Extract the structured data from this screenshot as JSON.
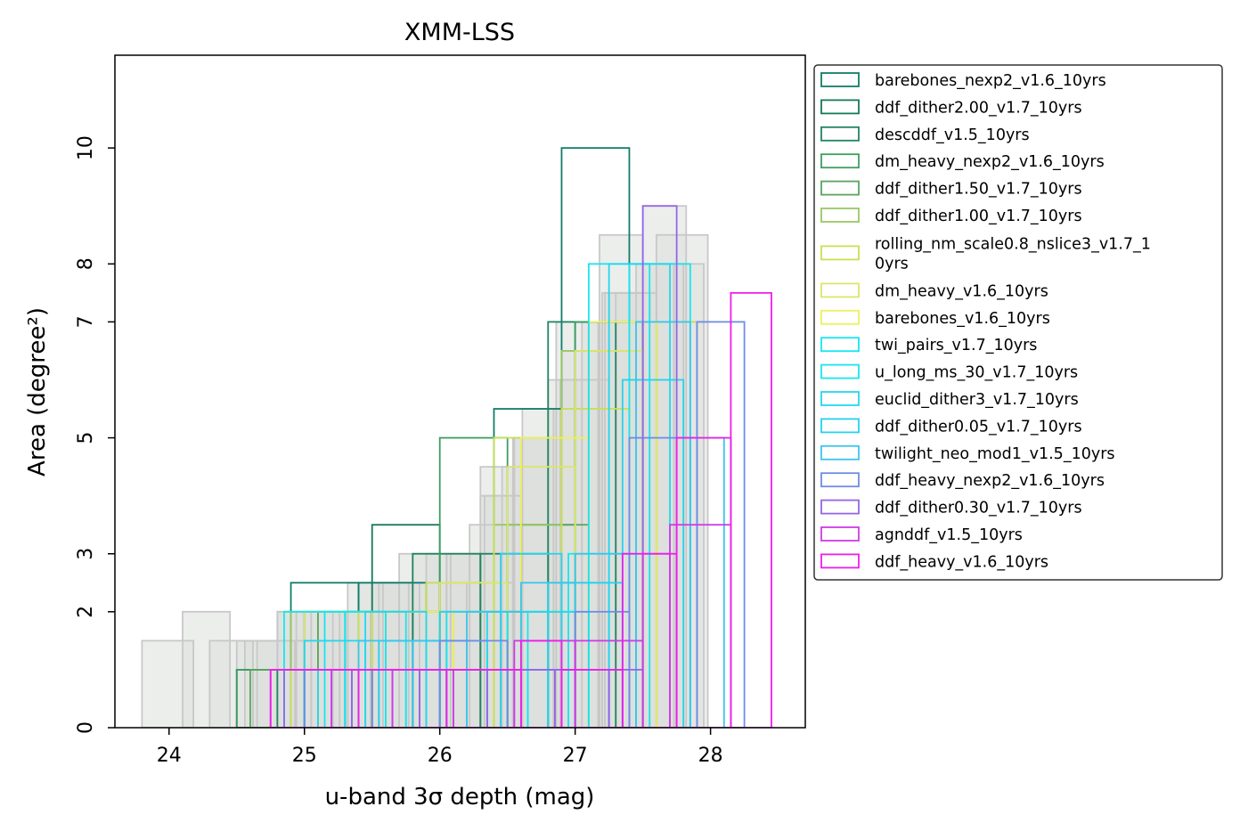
{
  "chart_data": {
    "type": "histogram",
    "title": "XMM-LSS",
    "xlabel": "u-band 3σ depth (mag)",
    "ylabel": "Area (degree²)",
    "xlim": [
      23.6,
      28.7
    ],
    "ylim": [
      0,
      11.6
    ],
    "x_ticks": [
      24,
      25,
      26,
      27,
      28
    ],
    "y_ticks": [
      0,
      2,
      3,
      5,
      7,
      8,
      10
    ],
    "y_tick_labels": [
      "0",
      "2",
      "3",
      "5",
      "7",
      "8",
      "10"
    ],
    "grid": false,
    "legend_position": "outside-right",
    "background_series_color": "#c8c8c8",
    "background_fill_color": "#dde0dc",
    "background_series": [
      {
        "x": [
          23.8,
          24.18,
          24.56,
          24.94,
          25.32,
          25.7,
          26.08,
          26.46,
          26.84,
          27.22,
          27.6,
          27.98
        ],
        "counts": [
          1.5,
          0,
          1.5,
          2,
          2.5,
          2,
          3,
          4.5,
          5.5,
          7.5,
          8.5,
          0
        ]
      },
      {
        "x": [
          24.1,
          24.45,
          24.8,
          25.15,
          25.5,
          25.85,
          26.2,
          26.55,
          26.9,
          27.25,
          27.6,
          27.95
        ],
        "counts": [
          2,
          0,
          2,
          2,
          2.5,
          2,
          2.5,
          5,
          6,
          7.5,
          8,
          0
        ]
      },
      {
        "x": [
          24.3,
          24.62,
          24.94,
          25.26,
          25.58,
          25.9,
          26.22,
          26.54,
          26.86,
          27.18,
          27.5,
          27.82
        ],
        "counts": [
          1.5,
          1,
          1.5,
          2,
          2.5,
          3,
          3.5,
          5,
          7,
          8.5,
          9,
          0
        ]
      },
      {
        "x": [
          24.5,
          24.8,
          25.1,
          25.4,
          25.7,
          26.0,
          26.3,
          26.6,
          26.9,
          27.2,
          27.5,
          27.8
        ],
        "counts": [
          1.5,
          2,
          2,
          2.5,
          3,
          2.5,
          4,
          5,
          6.5,
          7.5,
          8,
          0
        ]
      },
      {
        "x": [
          24.65,
          24.93,
          25.21,
          25.49,
          25.77,
          26.05,
          26.33,
          26.61,
          26.89,
          27.17,
          27.45,
          27.73
        ],
        "counts": [
          1.5,
          1.5,
          2,
          2,
          2.5,
          3,
          4,
          5.5,
          6,
          7,
          8,
          0
        ]
      },
      {
        "x": [
          24.8,
          25.05,
          25.3,
          25.55,
          25.8,
          26.05,
          26.3,
          26.55,
          26.8,
          27.05,
          27.3,
          27.55
        ],
        "counts": [
          2,
          1.5,
          2,
          2.5,
          3,
          3,
          4.5,
          5,
          6,
          7,
          7.5,
          0
        ]
      }
    ],
    "series": [
      {
        "name": "barebones_nexp2_v1.6_10yrs",
        "color": "#117d6a",
        "x": [
          24.9,
          25.4,
          25.9,
          26.4,
          26.9,
          27.4
        ],
        "counts": [
          2.5,
          2.5,
          1,
          5.5,
          10,
          0
        ]
      },
      {
        "name": "ddf_dither2.00_v1.7_10yrs",
        "color": "#15795a",
        "x": [
          24.5,
          25.0,
          25.5,
          26.0,
          26.5,
          27.0,
          27.5
        ],
        "counts": [
          1,
          2,
          3.5,
          1,
          2,
          7,
          0
        ]
      },
      {
        "name": "descddf_v1.5_10yrs",
        "color": "#1f8560",
        "x": [
          24.8,
          25.3,
          25.8,
          26.3,
          26.8,
          27.3
        ],
        "counts": [
          1,
          2,
          3,
          3,
          7,
          0
        ]
      },
      {
        "name": "dm_heavy_nexp2_v1.6_10yrs",
        "color": "#3c9e62",
        "x": [
          24.5,
          25.0,
          25.5,
          26.0,
          26.5,
          27.0,
          27.5
        ],
        "counts": [
          1,
          1,
          2,
          5,
          3.5,
          7,
          0
        ]
      },
      {
        "name": "ddf_dither1.50_v1.7_10yrs",
        "color": "#5aa55c",
        "x": [
          24.6,
          25.1,
          25.6,
          26.1,
          26.6,
          27.1,
          27.6
        ],
        "counts": [
          1,
          2,
          2,
          2,
          3.5,
          7,
          0
        ]
      },
      {
        "name": "ddf_dither1.00_v1.7_10yrs",
        "color": "#98c860",
        "x": [
          24.9,
          25.4,
          25.9,
          26.4,
          26.9,
          27.4
        ],
        "counts": [
          2,
          2,
          1,
          3.5,
          6.5,
          0
        ]
      },
      {
        "name": "rolling_nm_scale0.8_nslice3_v1.7_10yrs",
        "color": "#c9df55",
        "x": [
          24.9,
          25.4,
          25.9,
          26.4,
          26.9,
          27.4,
          27.9
        ],
        "counts": [
          1,
          2,
          2.5,
          5,
          5.5,
          7,
          0
        ]
      },
      {
        "name": "dm_heavy_v1.6_10yrs",
        "color": "#dde66a",
        "x": [
          25.0,
          25.5,
          26.0,
          26.5,
          27.0,
          27.5
        ],
        "counts": [
          2,
          2,
          2.5,
          4.5,
          6.5,
          0
        ]
      },
      {
        "name": "barebones_v1.6_10yrs",
        "color": "#eef05a",
        "x": [
          25.1,
          25.6,
          26.1,
          26.6,
          27.1,
          27.6
        ],
        "counts": [
          1,
          2,
          2,
          5,
          7,
          0
        ]
      },
      {
        "name": "twi_pairs_v1.7_10yrs",
        "color": "#17e6ee",
        "x": [
          24.85,
          25.3,
          25.75,
          26.2,
          26.65,
          27.1,
          27.55
        ],
        "counts": [
          2,
          2,
          1,
          1,
          2,
          8,
          0
        ]
      },
      {
        "name": "u_long_ms_30_v1.7_10yrs",
        "color": "#19e6f0",
        "x": [
          25.15,
          25.6,
          26.05,
          26.5,
          26.95,
          27.4,
          27.85
        ],
        "counts": [
          2,
          1.5,
          2,
          1,
          3,
          8,
          0
        ]
      },
      {
        "name": "euclid_dither3_v1.7_10yrs",
        "color": "#22d8ee",
        "x": [
          25.0,
          25.45,
          25.9,
          26.35,
          26.8,
          27.25,
          27.7
        ],
        "counts": [
          1.5,
          2,
          1.5,
          2,
          2.5,
          8,
          0
        ]
      },
      {
        "name": "ddf_dither0.05_v1.7_10yrs",
        "color": "#26d2ec",
        "x": [
          25.1,
          25.55,
          26.0,
          26.45,
          26.9,
          27.35,
          27.8
        ],
        "counts": [
          1,
          1.5,
          2,
          3,
          2.5,
          6,
          0
        ]
      },
      {
        "name": "twilight_neo_mod1_v1.5_10yrs",
        "color": "#3ac6ee",
        "x": [
          25.0,
          25.4,
          25.8,
          26.2,
          26.6,
          27.0,
          27.45,
          27.85,
          28.1
        ],
        "counts": [
          1,
          1.5,
          1.5,
          2,
          2.5,
          3,
          7,
          5,
          0
        ]
      },
      {
        "name": "ddf_heavy_nexp2_v1.6_10yrs",
        "color": "#6f8ce6",
        "x": [
          25.0,
          25.5,
          26.0,
          26.5,
          27.0,
          27.4,
          27.9,
          28.25
        ],
        "counts": [
          1,
          1,
          1.5,
          1,
          2,
          5,
          7,
          0
        ]
      },
      {
        "name": "ddf_dither0.30_v1.7_10yrs",
        "color": "#9466e8",
        "x": [
          24.85,
          25.35,
          25.85,
          26.35,
          26.85,
          27.25,
          27.5,
          27.75
        ],
        "counts": [
          1,
          1,
          1,
          1,
          1,
          1,
          9,
          0
        ]
      },
      {
        "name": "agnddf_v1.5_10yrs",
        "color": "#cf3ae8",
        "x": [
          24.75,
          25.2,
          25.65,
          26.1,
          26.55,
          27.0,
          27.5,
          27.7,
          28.15
        ],
        "counts": [
          1,
          1,
          1,
          1,
          1.5,
          1.5,
          3,
          3.5,
          0
        ]
      },
      {
        "name": "ddf_heavy_v1.6_10yrs",
        "color": "#ee1eea",
        "x": [
          24.75,
          25.4,
          26.05,
          26.6,
          26.9,
          27.35,
          27.75,
          28.15,
          28.45
        ],
        "counts": [
          1,
          1,
          1,
          1.5,
          1,
          3,
          5,
          7.5,
          0
        ]
      }
    ]
  }
}
